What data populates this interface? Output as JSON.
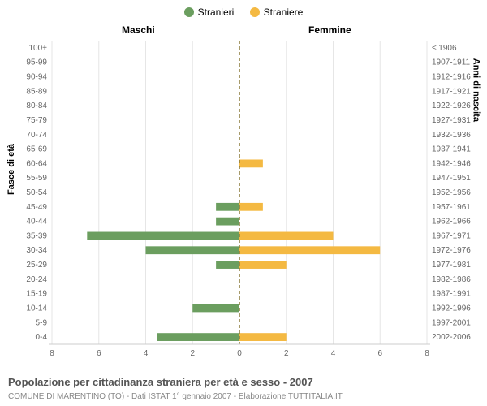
{
  "legend": {
    "male": {
      "label": "Stranieri",
      "color": "#6b9e5f"
    },
    "female": {
      "label": "Straniere",
      "color": "#f4b942"
    }
  },
  "headers": {
    "male": "Maschi",
    "female": "Femmine"
  },
  "axis": {
    "left_label": "Fasce di età",
    "right_label": "Anni di nascita",
    "xticks": [
      8,
      6,
      4,
      2,
      0,
      2,
      4,
      6,
      8
    ],
    "xmax": 8
  },
  "chart": {
    "type": "pyramid-bar",
    "background_color": "#ffffff",
    "grid_color": "#e6e6e6",
    "center_line_color": "#8a7a3a",
    "center_line_dash": "4,3",
    "row_height_ratio": 0.55,
    "tick_fontsize": 10
  },
  "rows": [
    {
      "age": "100+",
      "birth": "≤ 1906",
      "m": 0,
      "f": 0
    },
    {
      "age": "95-99",
      "birth": "1907-1911",
      "m": 0,
      "f": 0
    },
    {
      "age": "90-94",
      "birth": "1912-1916",
      "m": 0,
      "f": 0
    },
    {
      "age": "85-89",
      "birth": "1917-1921",
      "m": 0,
      "f": 0
    },
    {
      "age": "80-84",
      "birth": "1922-1926",
      "m": 0,
      "f": 0
    },
    {
      "age": "75-79",
      "birth": "1927-1931",
      "m": 0,
      "f": 0
    },
    {
      "age": "70-74",
      "birth": "1932-1936",
      "m": 0,
      "f": 0
    },
    {
      "age": "65-69",
      "birth": "1937-1941",
      "m": 0,
      "f": 0
    },
    {
      "age": "60-64",
      "birth": "1942-1946",
      "m": 0,
      "f": 1
    },
    {
      "age": "55-59",
      "birth": "1947-1951",
      "m": 0,
      "f": 0
    },
    {
      "age": "50-54",
      "birth": "1952-1956",
      "m": 0,
      "f": 0
    },
    {
      "age": "45-49",
      "birth": "1957-1961",
      "m": 1,
      "f": 1
    },
    {
      "age": "40-44",
      "birth": "1962-1966",
      "m": 1,
      "f": 0
    },
    {
      "age": "35-39",
      "birth": "1967-1971",
      "m": 6.5,
      "f": 4
    },
    {
      "age": "30-34",
      "birth": "1972-1976",
      "m": 4,
      "f": 6
    },
    {
      "age": "25-29",
      "birth": "1977-1981",
      "m": 1,
      "f": 2
    },
    {
      "age": "20-24",
      "birth": "1982-1986",
      "m": 0,
      "f": 0
    },
    {
      "age": "15-19",
      "birth": "1987-1991",
      "m": 0,
      "f": 0
    },
    {
      "age": "10-14",
      "birth": "1992-1996",
      "m": 2,
      "f": 0
    },
    {
      "age": "5-9",
      "birth": "1997-2001",
      "m": 0,
      "f": 0
    },
    {
      "age": "0-4",
      "birth": "2002-2006",
      "m": 3.5,
      "f": 2
    }
  ],
  "footer": {
    "title": "Popolazione per cittadinanza straniera per età e sesso - 2007",
    "sub": "COMUNE DI MARENTINO (TO) - Dati ISTAT 1° gennaio 2007 - Elaborazione TUTTITALIA.IT"
  }
}
